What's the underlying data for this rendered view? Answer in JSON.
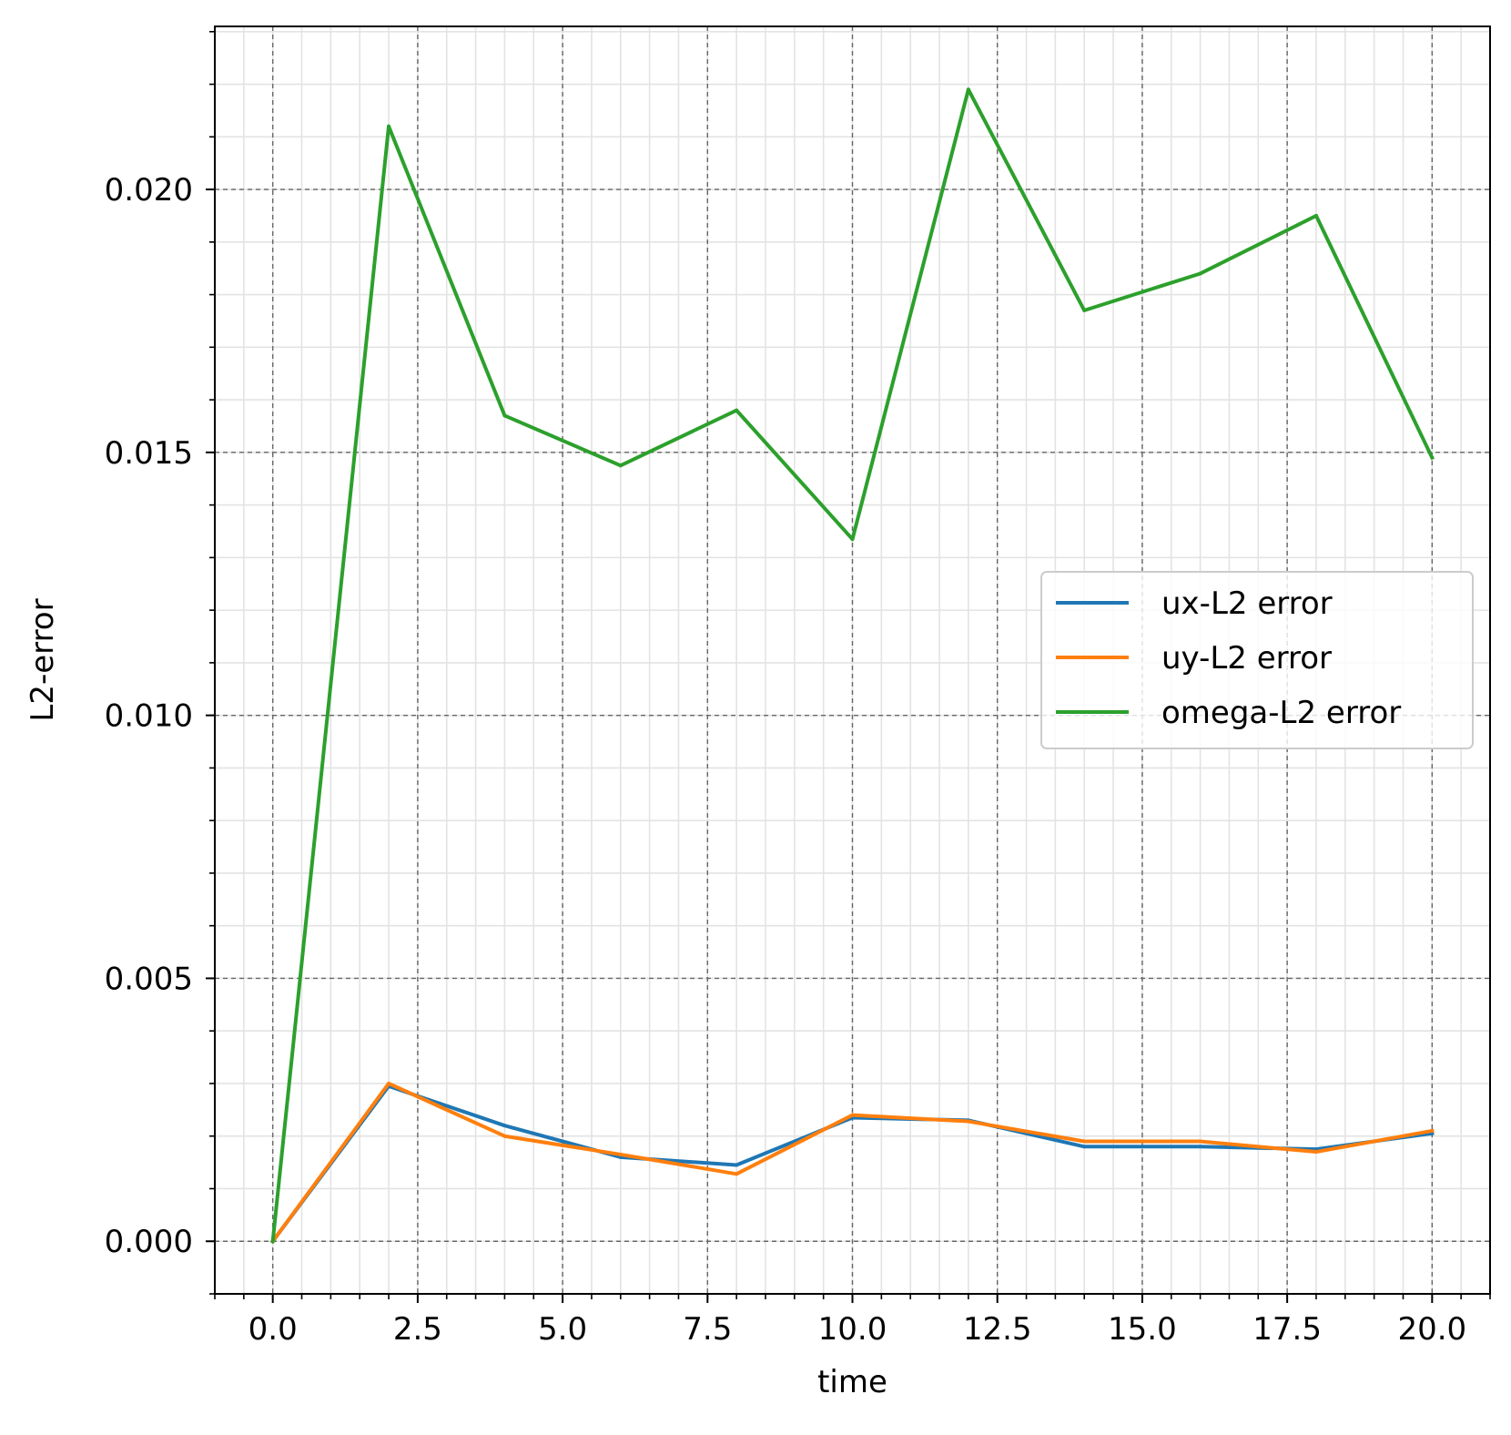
{
  "chart_data": {
    "type": "line",
    "title": "",
    "xlabel": "time",
    "ylabel": "L2-error",
    "xlim": [
      -1.0,
      21.0
    ],
    "ylim": [
      -0.001,
      0.0231
    ],
    "x_ticks": [
      {
        "value": 0.0,
        "label": "0.0"
      },
      {
        "value": 2.5,
        "label": "2.5"
      },
      {
        "value": 5.0,
        "label": "5.0"
      },
      {
        "value": 7.5,
        "label": "7.5"
      },
      {
        "value": 10.0,
        "label": "10.0"
      },
      {
        "value": 12.5,
        "label": "12.5"
      },
      {
        "value": 15.0,
        "label": "15.0"
      },
      {
        "value": 17.5,
        "label": "17.5"
      },
      {
        "value": 20.0,
        "label": "20.0"
      }
    ],
    "y_ticks": [
      {
        "value": 0.0,
        "label": "0.000"
      },
      {
        "value": 0.005,
        "label": "0.005"
      },
      {
        "value": 0.01,
        "label": "0.010"
      },
      {
        "value": 0.015,
        "label": "0.015"
      },
      {
        "value": 0.02,
        "label": "0.020"
      }
    ],
    "x_minor_step": 0.5,
    "y_minor_step": 0.001,
    "grid": {
      "major": true,
      "minor": true,
      "major_style": "dashed"
    },
    "legend_position": "center-right",
    "x": [
      0,
      2,
      4,
      6,
      8,
      10,
      12,
      14,
      16,
      18,
      20
    ],
    "series": [
      {
        "name": "ux-L2 error",
        "color": "#1f77b4",
        "values": [
          0.0,
          0.00295,
          0.0022,
          0.0016,
          0.00145,
          0.00235,
          0.0023,
          0.0018,
          0.0018,
          0.00175,
          0.00205
        ]
      },
      {
        "name": "uy-L2 error",
        "color": "#ff7f0e",
        "values": [
          0.0,
          0.003,
          0.002,
          0.00165,
          0.00128,
          0.0024,
          0.00228,
          0.0019,
          0.0019,
          0.0017,
          0.0021
        ]
      },
      {
        "name": "omega-L2 error",
        "color": "#2ca02c",
        "values": [
          0.0,
          0.0212,
          0.0157,
          0.01475,
          0.0158,
          0.01335,
          0.0219,
          0.0177,
          0.0184,
          0.0195,
          0.0149
        ]
      }
    ]
  }
}
